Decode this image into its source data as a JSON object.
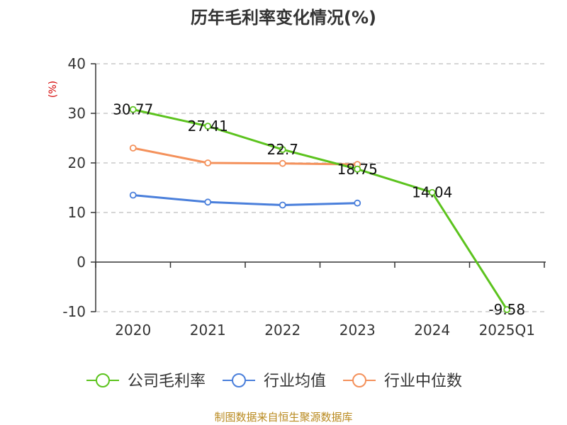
{
  "chart_data": {
    "type": "line",
    "title": "历年毛利率变化情况(%)",
    "ylabel": "(%)",
    "categories": [
      "2020",
      "2021",
      "2022",
      "2023",
      "2024",
      "2025Q1"
    ],
    "ylim": [
      -10,
      40
    ],
    "yticks": [
      40,
      30,
      20,
      10,
      0,
      -10
    ],
    "grid": true,
    "legend_position": "bottom",
    "series": [
      {
        "name": "公司毛利率",
        "color": "#5cc31e",
        "values": [
          30.77,
          27.41,
          22.7,
          18.75,
          14.04,
          -9.58
        ],
        "labels": [
          "30.77",
          "27.41",
          "22.7",
          "18.75",
          "14.04",
          "-9.58"
        ]
      },
      {
        "name": "行业均值",
        "color": "#4a7fdb",
        "values": [
          13.5,
          12.1,
          11.5,
          11.9,
          null,
          null
        ]
      },
      {
        "name": "行业中位数",
        "color": "#f4915b",
        "values": [
          23.0,
          20.0,
          19.9,
          19.7,
          null,
          null
        ]
      }
    ]
  },
  "source_note": "制图数据来自恒生聚源数据库"
}
